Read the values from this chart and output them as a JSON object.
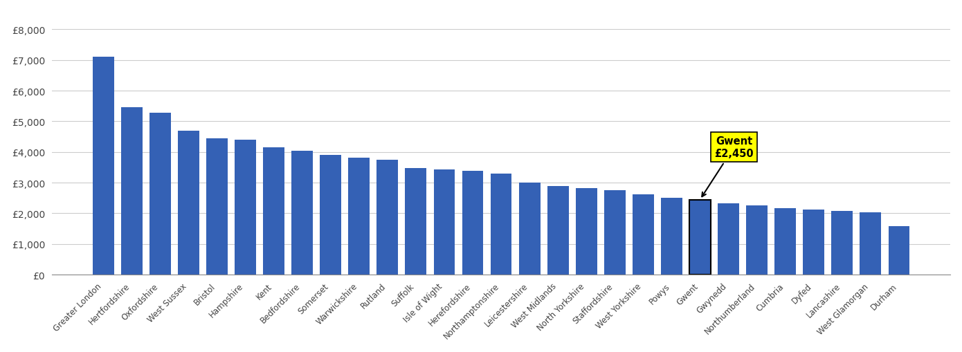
{
  "categories": [
    "Greater London",
    "Hertfordshire",
    "Oxfordshire",
    "West Sussex",
    "Bristol",
    "Hampshire",
    "Kent",
    "Bedfordshire",
    "Somerset",
    "Warwickshire",
    "Rutland",
    "Suffolk",
    "Isle of Wight",
    "Herefordshire",
    "Northamptonshire",
    "Leicestershire",
    "West Midlands",
    "North Yorkshire",
    "Staffordshire",
    "West Yorkshire",
    "Powys",
    "Gwent",
    "Gwynedd",
    "Northumberland",
    "Cumbria",
    "Dyfed",
    "Lancashire",
    "West Glamorgan",
    "Durham"
  ],
  "values": [
    7100,
    5450,
    5280,
    4700,
    4450,
    4400,
    4150,
    4050,
    3900,
    3820,
    3750,
    3480,
    3420,
    3380,
    3300,
    3000,
    2900,
    2820,
    2750,
    2620,
    2500,
    2450,
    2320,
    2250,
    2180,
    2130,
    2080,
    2030,
    1580
  ],
  "highlighted_index": 21,
  "highlight_label": "Gwent",
  "highlight_value": "£2,450",
  "bar_color": "#3461b5",
  "highlight_edge_color": "#000000",
  "annotation_bg_color": "#ffff00",
  "ytick_labels": [
    "£0",
    "£1,000",
    "£2,000",
    "£3,000",
    "£4,000",
    "£5,000",
    "£6,000",
    "£7,000",
    "£8,000"
  ],
  "ytick_values": [
    0,
    1000,
    2000,
    3000,
    4000,
    5000,
    6000,
    7000,
    8000
  ],
  "ylim": [
    0,
    8600
  ],
  "background_color": "#ffffff",
  "grid_color": "#cccccc"
}
